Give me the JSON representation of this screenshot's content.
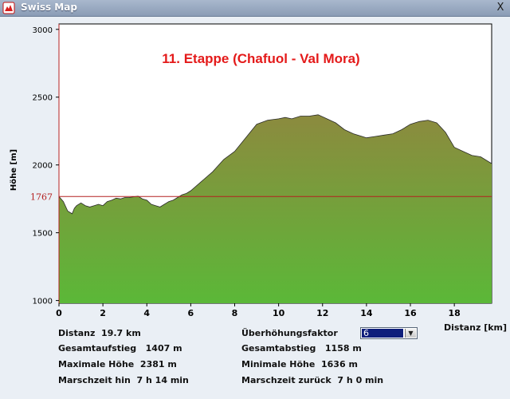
{
  "window": {
    "title": "Swiss Map",
    "close_label": "X",
    "icon": "swiss-map-app-icon"
  },
  "colors": {
    "title_red": "#e41a1a",
    "reference_line": "#b42020",
    "fill_top": "#8c8a3e",
    "fill_bottom": "#5bb838",
    "select_highlight": "#0e1e7b"
  },
  "chart_data": {
    "type": "area",
    "title": "11. Etappe (Chafuol - Val Mora)",
    "xlabel": "Distanz [km]",
    "ylabel": "Höhe [m]",
    "xlim": [
      0,
      19.7
    ],
    "ylim": [
      980,
      3040
    ],
    "x_ticks": [
      "0",
      "2",
      "4",
      "6",
      "8",
      "10",
      "12",
      "14",
      "16",
      "18"
    ],
    "y_ticks": [
      "1000",
      "1500",
      "2000",
      "2500",
      "3000"
    ],
    "reference_value": 1767,
    "reference_label": "1767",
    "grid": false,
    "series": [
      {
        "x": [
          0,
          0.2,
          0.4,
          0.6,
          0.7,
          0.8,
          1.0,
          1.2,
          1.4,
          1.6,
          1.8,
          2.0,
          2.2,
          2.4,
          2.6,
          2.8,
          3.0,
          3.2,
          3.4,
          3.6,
          3.8,
          4.0,
          4.2,
          4.4,
          4.6,
          4.8,
          5.0,
          5.2,
          5.4,
          5.6,
          5.8,
          6.0,
          6.5,
          7.0,
          7.5,
          8.0,
          8.5,
          9.0,
          9.5,
          10.0,
          10.3,
          10.6,
          11.0,
          11.4,
          11.8,
          12.2,
          12.6,
          13.0,
          13.4,
          13.8,
          14.0,
          14.4,
          14.8,
          15.2,
          15.6,
          16.0,
          16.4,
          16.8,
          17.2,
          17.6,
          18.0,
          18.4,
          18.8,
          19.2,
          19.7
        ],
        "y": [
          1767,
          1730,
          1660,
          1640,
          1680,
          1700,
          1720,
          1700,
          1690,
          1700,
          1710,
          1700,
          1730,
          1740,
          1755,
          1750,
          1760,
          1760,
          1765,
          1770,
          1750,
          1740,
          1710,
          1700,
          1690,
          1710,
          1730,
          1740,
          1760,
          1780,
          1790,
          1810,
          1880,
          1950,
          2040,
          2100,
          2200,
          2300,
          2330,
          2340,
          2350,
          2340,
          2360,
          2360,
          2370,
          2340,
          2310,
          2260,
          2230,
          2210,
          2200,
          2210,
          2220,
          2230,
          2260,
          2300,
          2320,
          2330,
          2310,
          2240,
          2130,
          2100,
          2070,
          2060,
          2010
        ]
      }
    ]
  },
  "stats": {
    "distance_label": "Distanz",
    "distance_value": "19.7 km",
    "ascent_label": "Gesamtaufstieg",
    "ascent_value": "1407 m",
    "max_label": "Maximale Höhe",
    "max_value": "2381 m",
    "time_forward_label": "Marschzeit hin",
    "time_forward_value": "7 h 14 min",
    "exaggeration_label": "Überhöhungsfaktor",
    "exaggeration_value": "6",
    "descent_label": "Gesamtabstieg",
    "descent_value": "1158 m",
    "min_label": "Minimale Höhe",
    "min_value": "1636 m",
    "time_back_label": "Marschzeit zurück",
    "time_back_value": "7 h 0 min"
  }
}
